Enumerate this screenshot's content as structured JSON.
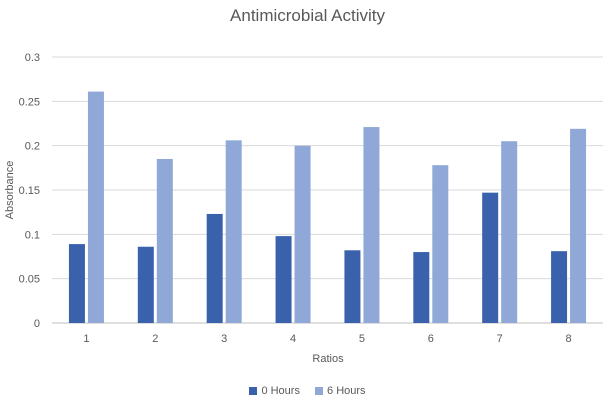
{
  "chart_data": {
    "type": "bar",
    "title": "Antimicrobial Activity",
    "xlabel": "Ratios",
    "ylabel": "Absorbance",
    "categories": [
      "1",
      "2",
      "3",
      "4",
      "5",
      "6",
      "7",
      "8"
    ],
    "series": [
      {
        "name": "0 Hours",
        "color": "#3a62ac",
        "values": [
          0.089,
          0.086,
          0.123,
          0.098,
          0.082,
          0.08,
          0.147,
          0.081
        ]
      },
      {
        "name": "6 Hours",
        "color": "#8fa8d7",
        "values": [
          0.261,
          0.185,
          0.206,
          0.2,
          0.221,
          0.178,
          0.205,
          0.219
        ]
      }
    ],
    "ylim": [
      0,
      0.3
    ],
    "yticks": [
      "0",
      "0.05",
      "0.1",
      "0.15",
      "0.2",
      "0.25",
      "0.3"
    ],
    "grid": true,
    "legend_position": "bottom"
  }
}
